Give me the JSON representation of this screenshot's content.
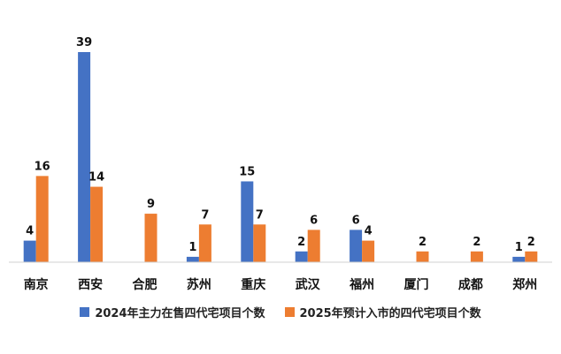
{
  "chart_data": {
    "type": "bar",
    "title": "",
    "xlabel": "",
    "ylabel": "",
    "ylim": [
      0,
      39
    ],
    "grid": false,
    "legend_position": "bottom",
    "categories": [
      "南京",
      "西安",
      "合肥",
      "苏州",
      "重庆",
      "武汉",
      "福州",
      "厦门",
      "成都",
      "郑州"
    ],
    "series": [
      {
        "name": "2024年主力在售四代宅项目个数",
        "color": "#4472C4",
        "values": [
          4,
          39,
          null,
          1,
          15,
          2,
          6,
          null,
          null,
          1
        ]
      },
      {
        "name": "2025年预计入市的四代宅项目个数",
        "color": "#ED7D31",
        "values": [
          16,
          14,
          9,
          7,
          7,
          6,
          4,
          2,
          2,
          2
        ]
      }
    ]
  }
}
